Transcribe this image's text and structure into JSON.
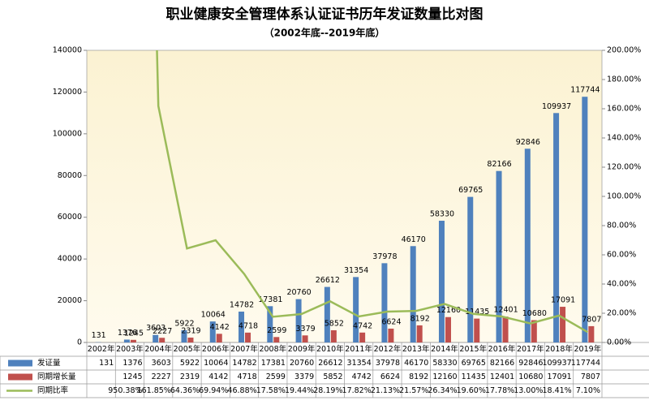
{
  "chart_data": {
    "type": "bar",
    "title": "职业健康安全管理体系认证证书历年发证数量比对图",
    "subtitle": "（2002年底--2019年底）",
    "categories": [
      "2002年",
      "2003年",
      "2004年",
      "2005年",
      "2006年",
      "2007年",
      "2008年",
      "2009年",
      "2010年",
      "2011年",
      "2012年",
      "2013年",
      "2014年",
      "2015年",
      "2016年",
      "2017年",
      "2018年",
      "2019年"
    ],
    "series": [
      {
        "name": "发证量",
        "color": "#4f81bd",
        "values": [
          131,
          1376,
          3603,
          5922,
          10064,
          14782,
          17381,
          20760,
          26612,
          31354,
          37978,
          46170,
          58330,
          69765,
          82166,
          92846,
          109937,
          117744
        ]
      },
      {
        "name": "同期增长量",
        "color": "#c0504d",
        "values": [
          null,
          1245,
          2227,
          2319,
          4142,
          4718,
          2599,
          3379,
          5852,
          4742,
          6624,
          8192,
          12160,
          11435,
          12401,
          10680,
          17091,
          7807
        ]
      },
      {
        "name": "同期比率",
        "color": "#9bbb59",
        "type": "line",
        "axis": "y2",
        "values": [
          null,
          950.38,
          161.85,
          64.36,
          69.94,
          46.88,
          17.58,
          19.44,
          28.19,
          17.82,
          21.13,
          21.57,
          26.34,
          19.6,
          17.78,
          13.0,
          18.41,
          7.1
        ],
        "value_labels": [
          null,
          "950.38%",
          "161.85%",
          "64.36%",
          "69.94%",
          "46.88%",
          "17.58%",
          "19.44%",
          "28.19%",
          "17.82%",
          "21.13%",
          "21.57%",
          "26.34%",
          "19.60%",
          "17.78%",
          "13.00%",
          "18.41%",
          "7.10%"
        ]
      }
    ],
    "ylim": [
      0,
      140000
    ],
    "yticks": [
      0,
      20000,
      40000,
      60000,
      80000,
      100000,
      120000,
      140000
    ],
    "y2lim": [
      0,
      200
    ],
    "y2ticks": [
      {
        "value": 0,
        "label": "0.00%"
      },
      {
        "value": 20,
        "label": "20.00%"
      },
      {
        "value": 40,
        "label": "40.00%"
      },
      {
        "value": 60,
        "label": "60.00%"
      },
      {
        "value": 80,
        "label": "80.00%"
      },
      {
        "value": 100,
        "label": "100.00%"
      },
      {
        "value": 120,
        "label": "120.00%"
      },
      {
        "value": 140,
        "label": "140.00%"
      },
      {
        "value": 160,
        "label": "160.00%"
      },
      {
        "value": 180,
        "label": "180.00%"
      },
      {
        "value": 200,
        "label": "200.00%"
      }
    ]
  }
}
